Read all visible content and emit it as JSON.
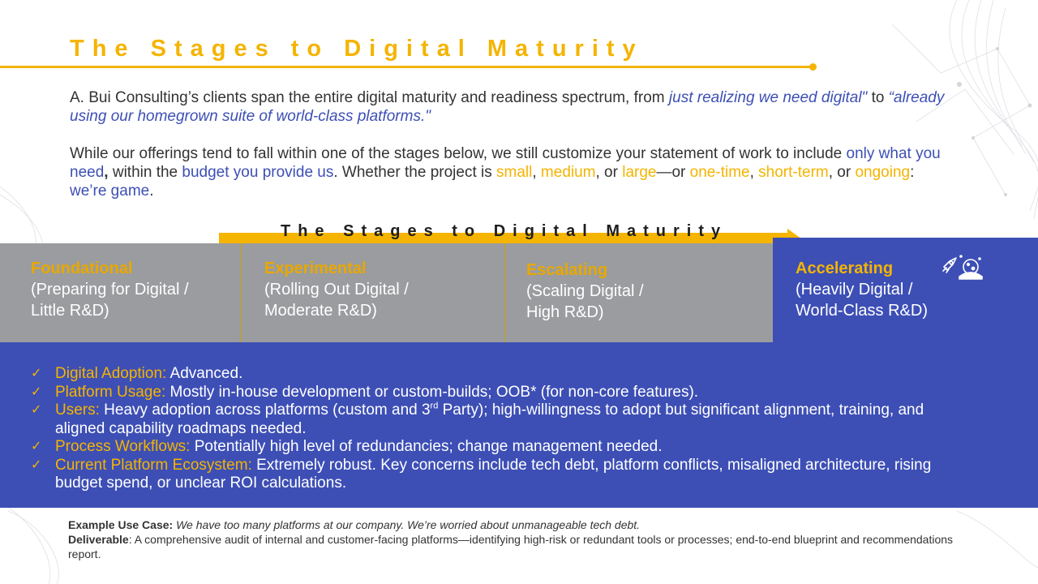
{
  "header": {
    "title": "The Stages to Digital Maturity"
  },
  "intro": {
    "p1_lead": "A. Bui Consulting’s clients span the entire digital maturity and readiness spectrum, from ",
    "p1_quote1": "just realizing we need digital\"",
    "p1_mid": " to ",
    "p1_quote2": "“already using our homegrown suite of world-class platforms.\"",
    "p2_lead": "While our offerings tend to fall within one of the stages below, we still customize your statement of work to include ",
    "p2_need": "only what you need",
    "p2_comma": ",",
    "p2_within": " within the ",
    "p2_budget": "budget you provide us",
    "p2_whether": ". Whether the project is ",
    "p2_small": "small",
    "p2_sep1": ", ",
    "p2_medium": "medium",
    "p2_or1": ", or ",
    "p2_large": "large",
    "p2_dash": "—or ",
    "p2_onetime": "one-time",
    "p2_sep2": ", ",
    "p2_shortterm": "short-term",
    "p2_or2": ", or ",
    "p2_ongoing": "ongoing",
    "p2_colon": ": ",
    "p2_game": "we’re game",
    "p2_end": "."
  },
  "stages_header": "The Stages to Digital Maturity",
  "stages": [
    {
      "name": "Foundational",
      "desc": "(Preparing for Digital /\nLittle R&D)"
    },
    {
      "name": "Experimental",
      "desc": "(Rolling Out Digital /\nModerate R&D)"
    },
    {
      "name": "Escalating",
      "desc": "(Scaling Digital /\nHigh R&D)"
    },
    {
      "name": "Accelerating",
      "desc": "(Heavily Digital /\nWorld-Class R&D)",
      "icon": "rocket-planet-icon"
    }
  ],
  "checklist": {
    "mark": "✓",
    "items": [
      {
        "label": "Digital Adoption:",
        "text": " Advanced."
      },
      {
        "label": "Platform Usage:",
        "text": " Mostly in-house development or custom-builds; OOB* (for non-core features)."
      },
      {
        "label": "Users:",
        "text_pre": " Heavy adoption across platforms (custom and 3",
        "sup": "rd",
        "text_post": " Party); high-willingness to adopt but significant alignment, training, and aligned capability roadmaps needed."
      },
      {
        "label": "Process Workflows:",
        "text": " Potentially high level of redundancies; change management needed."
      },
      {
        "label": "Current Platform Ecosystem:",
        "text": " Extremely robust. Key concerns include tech debt, platform conflicts, misaligned architecture, rising budget spend, or unclear ROI calculations."
      }
    ]
  },
  "footer": {
    "use_case_label": "Example Use Case:",
    "use_case_text": " We have too many platforms at our company. We’re worried about unmanageable tech debt.",
    "deliverable_label": "Deliverable",
    "deliverable_text": ":  A comprehensive audit of internal and customer-facing platforms—identifying high-risk or redundant tools or processes; end-to-end blueprint and recommendations report."
  },
  "colors": {
    "accent_gold": "#f4b400",
    "brand_blue": "#3d4fb5",
    "stage_gray": "#9a9c9f"
  }
}
